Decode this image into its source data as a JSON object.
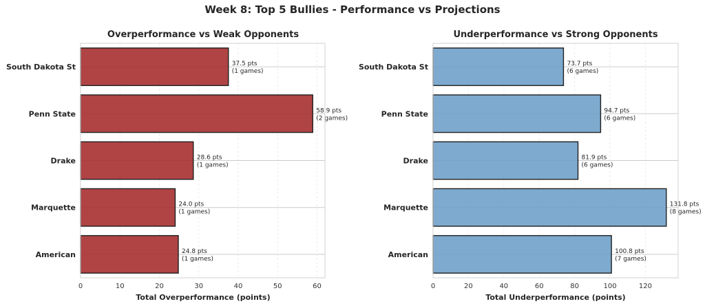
{
  "suptitle": "Week 8: Top 5 Bullies - Performance vs Projections",
  "chart_data": [
    {
      "type": "bar",
      "orientation": "horizontal",
      "title": "Overperformance vs Weak Opponents",
      "xlabel": "Total Overperformance (points)",
      "ylabel": "",
      "categories": [
        "South Dakota St",
        "Penn State",
        "Drake",
        "Marquette",
        "American"
      ],
      "values": [
        37.5,
        58.9,
        28.6,
        24.0,
        24.8
      ],
      "games": [
        1,
        2,
        1,
        1,
        1
      ],
      "value_labels": [
        "37.5 pts",
        "58.9 pts",
        "28.6 pts",
        "24.0 pts",
        "24.8 pts"
      ],
      "game_labels": [
        "(1 games)",
        "(2 games)",
        "(1 games)",
        "(1 games)",
        "(1 games)"
      ],
      "xlim": [
        0,
        62
      ],
      "xticks": [
        0,
        10,
        20,
        30,
        40,
        50,
        60
      ],
      "color": "#a52a2a",
      "grid": true
    },
    {
      "type": "bar",
      "orientation": "horizontal",
      "title": "Underperformance vs Strong Opponents",
      "xlabel": "Total Underperformance (points)",
      "ylabel": "",
      "categories": [
        "South Dakota St",
        "Penn State",
        "Drake",
        "Marquette",
        "American"
      ],
      "values": [
        73.7,
        94.7,
        81.9,
        131.8,
        100.8
      ],
      "games": [
        6,
        6,
        6,
        8,
        7
      ],
      "value_labels": [
        "73.7 pts",
        "94.7 pts",
        "81.9 pts",
        "131.8 pts",
        "100.8 pts"
      ],
      "game_labels": [
        "(6 games)",
        "(6 games)",
        "(6 games)",
        "(8 games)",
        "(7 games)"
      ],
      "xlim": [
        0,
        138.5
      ],
      "xticks": [
        0,
        20,
        40,
        60,
        80,
        100,
        120
      ],
      "color": "#6c9ec8",
      "grid": true
    }
  ]
}
